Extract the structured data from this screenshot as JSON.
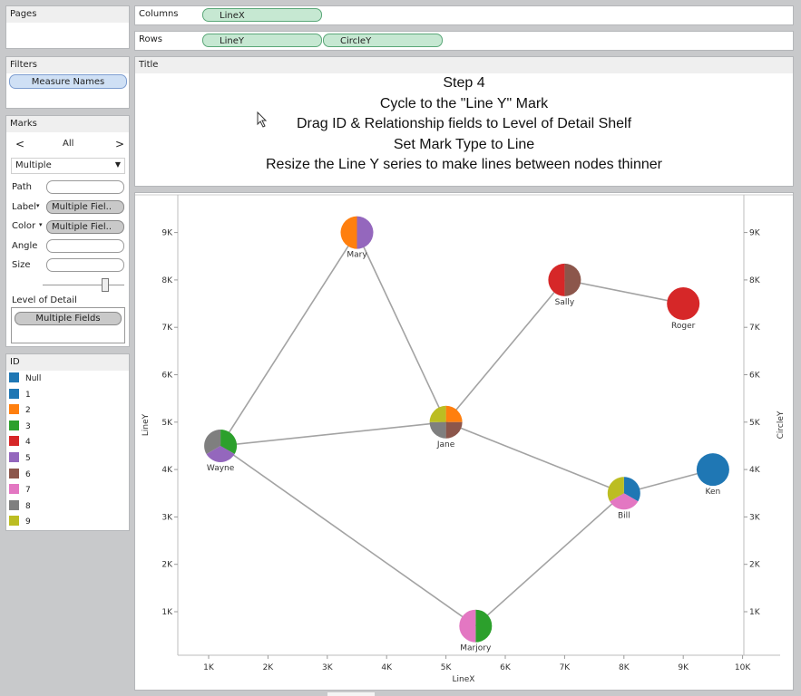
{
  "pages": {
    "label": "Pages"
  },
  "columns": {
    "label": "Columns",
    "pills": [
      "LineX"
    ]
  },
  "rows": {
    "label": "Rows",
    "pills": [
      "LineY",
      "CircleY"
    ]
  },
  "filters": {
    "label": "Filters",
    "pill": "Measure Names"
  },
  "marks": {
    "label": "Marks",
    "nav": {
      "prev": "<",
      "current": "All",
      "next": ">"
    },
    "mark_type": "Multiple",
    "path_label": "Path",
    "label_label": "Label",
    "label_value": "Multiple Fiel..",
    "color_label": "Color",
    "color_value": "Multiple Fiel..",
    "angle_label": "Angle",
    "size_label": "Size",
    "lod_label": "Level of Detail",
    "lod_value": "Multiple Fields"
  },
  "legend": {
    "title": "ID",
    "items": [
      {
        "label": "Null",
        "color": "#1f77b4"
      },
      {
        "label": "1",
        "color": "#1f77b4"
      },
      {
        "label": "2",
        "color": "#ff7f0e"
      },
      {
        "label": "3",
        "color": "#2ca02c"
      },
      {
        "label": "4",
        "color": "#d62728"
      },
      {
        "label": "5",
        "color": "#9467bd"
      },
      {
        "label": "6",
        "color": "#8c564b"
      },
      {
        "label": "7",
        "color": "#e377c2"
      },
      {
        "label": "8",
        "color": "#7f7f7f"
      },
      {
        "label": "9",
        "color": "#bcbd22"
      }
    ]
  },
  "title_card": {
    "label": "Title",
    "lines": [
      "Step 4",
      "Cycle to the \"Line Y\" Mark",
      "Drag ID & Relationship fields to Level of Detail Shelf",
      "Set Mark Type to Line",
      "Resize the Line Y series to make lines between nodes thinner"
    ]
  },
  "chart_data": {
    "type": "scatter",
    "xlabel": "LineX",
    "ylabel": "LineY",
    "y2label": "CircleY",
    "xlim": [
      400,
      10200
    ],
    "ylim": [
      0,
      9500
    ],
    "x_ticks": [
      {
        "v": 1000,
        "label": "1K"
      },
      {
        "v": 2000,
        "label": "2K"
      },
      {
        "v": 3000,
        "label": "3K"
      },
      {
        "v": 4000,
        "label": "4K"
      },
      {
        "v": 5000,
        "label": "5K"
      },
      {
        "v": 6000,
        "label": "6K"
      },
      {
        "v": 7000,
        "label": "7K"
      },
      {
        "v": 8000,
        "label": "8K"
      },
      {
        "v": 9000,
        "label": "9K"
      },
      {
        "v": 10000,
        "label": "10K"
      }
    ],
    "y_ticks": [
      {
        "v": 1000,
        "label": "1K"
      },
      {
        "v": 2000,
        "label": "2K"
      },
      {
        "v": 3000,
        "label": "3K"
      },
      {
        "v": 4000,
        "label": "4K"
      },
      {
        "v": 5000,
        "label": "5K"
      },
      {
        "v": 6000,
        "label": "6K"
      },
      {
        "v": 7000,
        "label": "7K"
      },
      {
        "v": 8000,
        "label": "8K"
      },
      {
        "v": 9000,
        "label": "9K"
      }
    ],
    "nodes": [
      {
        "name": "Mary",
        "x": 3500,
        "y": 9000,
        "colors": [
          "#9467bd",
          "#ff7f0e"
        ]
      },
      {
        "name": "Sally",
        "x": 7000,
        "y": 8000,
        "colors": [
          "#8c564b",
          "#d62728"
        ]
      },
      {
        "name": "Roger",
        "x": 9000,
        "y": 7500,
        "colors": [
          "#d62728"
        ]
      },
      {
        "name": "Jane",
        "x": 5000,
        "y": 5000,
        "colors": [
          "#ff7f0e",
          "#8c564b",
          "#7f7f7f",
          "#bcbd22"
        ]
      },
      {
        "name": "Wayne",
        "x": 1200,
        "y": 4500,
        "colors": [
          "#2ca02c",
          "#9467bd",
          "#7f7f7f"
        ]
      },
      {
        "name": "Ken",
        "x": 9500,
        "y": 4000,
        "colors": [
          "#1f77b4"
        ]
      },
      {
        "name": "Bill",
        "x": 8000,
        "y": 3500,
        "colors": [
          "#1f77b4",
          "#e377c2",
          "#bcbd22"
        ]
      },
      {
        "name": "Marjory",
        "x": 5500,
        "y": 700,
        "colors": [
          "#2ca02c",
          "#e377c2"
        ]
      }
    ],
    "edges": [
      [
        "Wayne",
        "Mary"
      ],
      [
        "Mary",
        "Jane"
      ],
      [
        "Jane",
        "Sally"
      ],
      [
        "Sally",
        "Roger"
      ],
      [
        "Wayne",
        "Jane"
      ],
      [
        "Jane",
        "Bill"
      ],
      [
        "Bill",
        "Ken"
      ],
      [
        "Wayne",
        "Marjory"
      ],
      [
        "Marjory",
        "Bill"
      ]
    ]
  }
}
